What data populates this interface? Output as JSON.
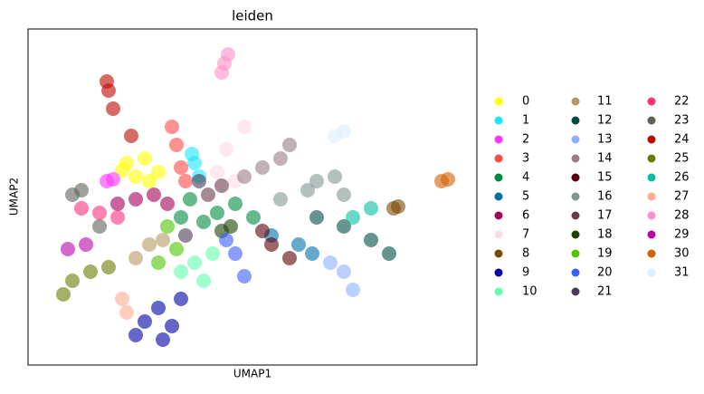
{
  "chart_data": {
    "type": "scatter",
    "title": "leiden",
    "x_label": "UMAP1",
    "y_label": "UMAP2",
    "xlim": [
      0,
      496
    ],
    "ylim": [
      0,
      371
    ],
    "legend": "right",
    "series": [
      {
        "name": "0",
        "color": "#FFFF00",
        "x": [
          109,
          129,
          144,
          119,
          134,
          104
        ],
        "y": [
          223,
          228,
          213,
          208,
          203,
          215
        ]
      },
      {
        "name": "1",
        "color": "#1CE6FF",
        "x": [
          184,
          189,
          181
        ],
        "y": [
          223,
          208,
          233
        ]
      },
      {
        "name": "2",
        "color": "#FF34FF",
        "x": [
          94,
          87
        ],
        "y": [
          205,
          203
        ]
      },
      {
        "name": "3",
        "color": "#FF4A46",
        "x": [
          164,
          169,
          159,
          174
        ],
        "y": [
          243,
          218,
          263,
          203
        ]
      },
      {
        "name": "4",
        "color": "#008941",
        "x": [
          179,
          209,
          229,
          194,
          249,
          169
        ],
        "y": [
          183,
          168,
          178,
          158,
          163,
          163
        ]
      },
      {
        "name": "5",
        "color": "#006FA6",
        "x": [
          299,
          314,
          269
        ],
        "y": [
          133,
          123,
          143
        ]
      },
      {
        "name": "6",
        "color": "#A30059",
        "x": [
          119,
          139,
          99,
          154
        ],
        "y": [
          183,
          188,
          178,
          178
        ]
      },
      {
        "name": "7",
        "color": "#FFDBE5",
        "x": [
          219,
          239,
          209,
          229
        ],
        "y": [
          238,
          263,
          213,
          203
        ]
      },
      {
        "name": "8",
        "color": "#7A4900",
        "x": [
          404,
          409
        ],
        "y": [
          173,
          175
        ]
      },
      {
        "name": "9",
        "color": "#0000A6",
        "x": [
          144,
          159,
          129,
          169,
          149,
          119
        ],
        "y": [
          63,
          43,
          48,
          73,
          28,
          33
        ]
      },
      {
        "name": "10",
        "color": "#63FFAC",
        "x": [
          184,
          194,
          169,
          204
        ],
        "y": [
          113,
          93,
          103,
          123
        ]
      },
      {
        "name": "11",
        "color": "#B79762",
        "x": [
          134,
          119,
          149
        ],
        "y": [
          133,
          118,
          138
        ]
      },
      {
        "name": "12",
        "color": "#004D43",
        "x": [
          349,
          379,
          319,
          399
        ],
        "y": [
          153,
          138,
          163,
          123
        ]
      },
      {
        "name": "13",
        "color": "#8FB0FF",
        "x": [
          349,
          359,
          334
        ],
        "y": [
          103,
          83,
          113
        ]
      },
      {
        "name": "14",
        "color": "#997D87",
        "x": [
          259,
          279,
          239,
          289
        ],
        "y": [
          218,
          228,
          208,
          243
        ]
      },
      {
        "name": "15",
        "color": "#5A0007",
        "x": [
          269,
          289,
          259
        ],
        "y": [
          133,
          118,
          148
        ]
      },
      {
        "name": "16",
        "color": "#809693",
        "x": [
          309,
          339,
          279,
          349,
          319
        ],
        "y": [
          193,
          208,
          183,
          188,
          203
        ]
      },
      {
        "name": "17",
        "color": "#6A3A4C",
        "x": [
          199,
          214
        ],
        "y": [
          188,
          198
        ]
      },
      {
        "name": "18",
        "color": "#1B4400",
        "x": [
          214,
          224
        ],
        "y": [
          148,
          153
        ]
      },
      {
        "name": "19",
        "color": "#4FC601",
        "x": [
          154,
          164,
          144
        ],
        "y": [
          153,
          128,
          113
        ]
      },
      {
        "name": "20",
        "color": "#3B5DFF",
        "x": [
          229,
          239,
          219
        ],
        "y": [
          123,
          98,
          138
        ]
      },
      {
        "name": "21",
        "color": "#4A3B53",
        "x": [
          189,
          174
        ],
        "y": [
          203,
          143
        ]
      },
      {
        "name": "22",
        "color": "#FF2F80",
        "x": [
          59,
          79,
          99
        ],
        "y": [
          173,
          168,
          163
        ]
      },
      {
        "name": "23",
        "color": "#61615A",
        "x": [
          59,
          79,
          49
        ],
        "y": [
          193,
          153,
          188
        ]
      },
      {
        "name": "24",
        "color": "#BA0900",
        "x": [
          89,
          94,
          114,
          87
        ],
        "y": [
          303,
          283,
          253,
          313
        ]
      },
      {
        "name": "25",
        "color": "#6B7900",
        "x": [
          49,
          69,
          39,
          89
        ],
        "y": [
          93,
          103,
          78,
          108
        ]
      },
      {
        "name": "26",
        "color": "#00C2A0",
        "x": [
          359,
          379
        ],
        "y": [
          163,
          173
        ]
      },
      {
        "name": "27",
        "color": "#FFAA92",
        "x": [
          109,
          104
        ],
        "y": [
          58,
          73
        ]
      },
      {
        "name": "28",
        "color": "#FF90C9",
        "x": [
          217,
          221,
          214
        ],
        "y": [
          333,
          343,
          323
        ]
      },
      {
        "name": "29",
        "color": "#B903AA",
        "x": [
          44,
          64
        ],
        "y": [
          128,
          133
        ]
      },
      {
        "name": "30",
        "color": "#D16100",
        "x": [
          457,
          464
        ],
        "y": [
          203,
          205
        ]
      },
      {
        "name": "31",
        "color": "#DDEFFF",
        "x": [
          339,
          349
        ],
        "y": [
          253,
          258
        ]
      }
    ]
  }
}
